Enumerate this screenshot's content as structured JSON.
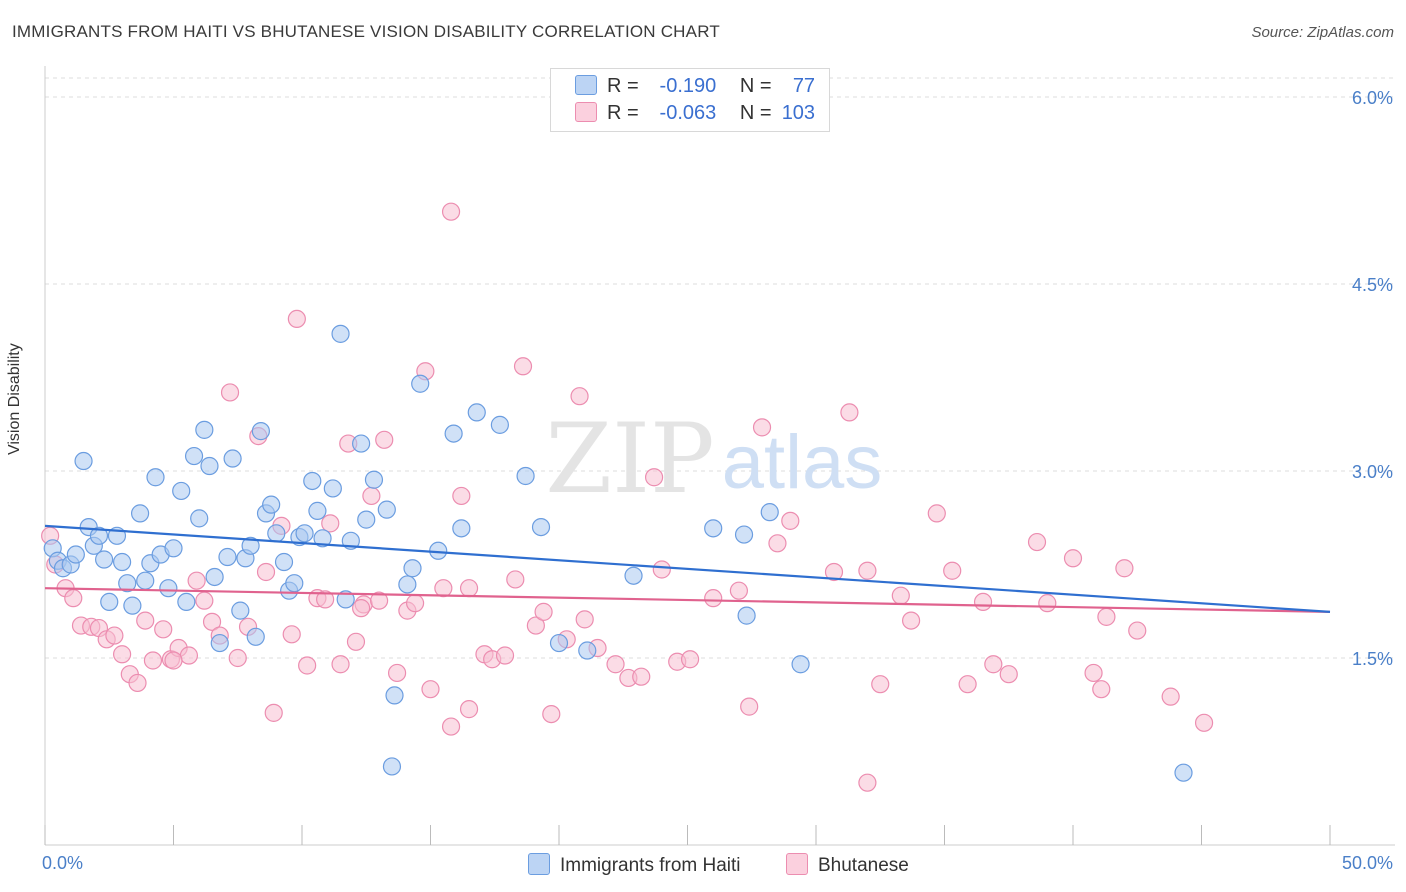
{
  "title": "IMMIGRANTS FROM HAITI VS BHUTANESE VISION DISABILITY CORRELATION CHART",
  "source": "Source: ZipAtlas.com",
  "watermark": {
    "zip": "ZIP",
    "atlas": "atlas"
  },
  "legend": {
    "rows": [
      {
        "r_label": "R =",
        "r_value": "-0.190",
        "n_label": "N =",
        "n_value": "77"
      },
      {
        "r_label": "R =",
        "r_value": "-0.063",
        "n_label": "N =",
        "n_value": "103"
      }
    ]
  },
  "colors": {
    "haiti_fill": "#a9c8f0",
    "haiti_stroke": "#6b9de0",
    "haiti_line": "#2f6fd0",
    "bhutan_fill": "#f8bfd2",
    "bhutan_stroke": "#ec8db0",
    "bhutan_line": "#e0628e",
    "tick": "#4a7fc8",
    "grid": "#dddddd"
  },
  "chart_data": {
    "type": "scatter",
    "title": "IMMIGRANTS FROM HAITI VS BHUTANESE VISION DISABILITY CORRELATION CHART",
    "xlabel": "",
    "ylabel": "Vision Disability",
    "xlim": [
      0,
      50
    ],
    "ylim": [
      0,
      6.2
    ],
    "x_tick_labels": [
      "0.0%",
      "50.0%"
    ],
    "y_ticks": [
      1.5,
      3.0,
      4.5,
      6.0
    ],
    "y_tick_labels": [
      "1.5%",
      "3.0%",
      "4.5%",
      "6.0%"
    ],
    "grid": "horizontal dashed",
    "legend_position": "top-center and bottom",
    "series": [
      {
        "name": "Immigrants from Haiti",
        "r": -0.19,
        "n": 77,
        "trend": {
          "x": [
            0,
            50
          ],
          "y": [
            2.56,
            1.87
          ]
        },
        "points": [
          [
            0.3,
            2.38
          ],
          [
            0.5,
            2.28
          ],
          [
            0.7,
            2.22
          ],
          [
            1.0,
            2.25
          ],
          [
            1.2,
            2.33
          ],
          [
            1.5,
            3.08
          ],
          [
            1.7,
            2.55
          ],
          [
            1.9,
            2.4
          ],
          [
            2.1,
            2.48
          ],
          [
            2.3,
            2.29
          ],
          [
            2.5,
            1.95
          ],
          [
            2.8,
            2.48
          ],
          [
            3.0,
            2.27
          ],
          [
            3.2,
            2.1
          ],
          [
            3.4,
            1.92
          ],
          [
            3.7,
            2.66
          ],
          [
            3.9,
            2.12
          ],
          [
            4.1,
            2.26
          ],
          [
            4.3,
            2.95
          ],
          [
            4.5,
            2.33
          ],
          [
            4.8,
            2.06
          ],
          [
            5.0,
            2.38
          ],
          [
            5.3,
            2.84
          ],
          [
            5.5,
            1.95
          ],
          [
            5.8,
            3.12
          ],
          [
            6.0,
            2.62
          ],
          [
            6.2,
            3.33
          ],
          [
            6.4,
            3.04
          ],
          [
            6.6,
            2.15
          ],
          [
            6.8,
            1.62
          ],
          [
            7.1,
            2.31
          ],
          [
            7.3,
            3.1
          ],
          [
            7.6,
            1.88
          ],
          [
            7.8,
            2.3
          ],
          [
            8.0,
            2.4
          ],
          [
            8.2,
            1.67
          ],
          [
            8.4,
            3.32
          ],
          [
            8.6,
            2.66
          ],
          [
            8.8,
            2.73
          ],
          [
            9.0,
            2.5
          ],
          [
            9.3,
            2.27
          ],
          [
            9.5,
            2.04
          ],
          [
            9.7,
            2.1
          ],
          [
            9.9,
            2.47
          ],
          [
            10.1,
            2.5
          ],
          [
            10.4,
            2.92
          ],
          [
            10.6,
            2.68
          ],
          [
            10.8,
            2.46
          ],
          [
            11.2,
            2.86
          ],
          [
            11.5,
            4.1
          ],
          [
            11.7,
            1.97
          ],
          [
            11.9,
            2.44
          ],
          [
            12.3,
            3.22
          ],
          [
            12.5,
            2.61
          ],
          [
            12.8,
            2.93
          ],
          [
            13.3,
            2.69
          ],
          [
            13.6,
            1.2
          ],
          [
            14.1,
            2.09
          ],
          [
            14.3,
            2.22
          ],
          [
            14.6,
            3.7
          ],
          [
            15.9,
            3.3
          ],
          [
            16.2,
            2.54
          ],
          [
            16.8,
            3.47
          ],
          [
            17.7,
            3.37
          ],
          [
            18.7,
            2.96
          ],
          [
            19.3,
            2.55
          ],
          [
            20.0,
            1.62
          ],
          [
            21.1,
            1.56
          ],
          [
            22.9,
            2.16
          ],
          [
            26.0,
            2.54
          ],
          [
            27.2,
            2.49
          ],
          [
            27.3,
            1.84
          ],
          [
            28.2,
            2.67
          ],
          [
            29.4,
            1.45
          ],
          [
            44.3,
            0.58
          ],
          [
            13.5,
            0.63
          ],
          [
            15.3,
            2.36
          ]
        ]
      },
      {
        "name": "Bhutanese",
        "r": -0.063,
        "n": 103,
        "trend": {
          "x": [
            0,
            50
          ],
          "y": [
            2.06,
            1.87
          ]
        },
        "points": [
          [
            0.2,
            2.48
          ],
          [
            0.4,
            2.25
          ],
          [
            0.8,
            2.06
          ],
          [
            1.1,
            1.98
          ],
          [
            1.4,
            1.76
          ],
          [
            1.8,
            1.75
          ],
          [
            2.1,
            1.74
          ],
          [
            2.4,
            1.65
          ],
          [
            2.7,
            1.68
          ],
          [
            3.0,
            1.53
          ],
          [
            3.3,
            1.37
          ],
          [
            3.6,
            1.3
          ],
          [
            3.9,
            1.8
          ],
          [
            4.2,
            1.48
          ],
          [
            4.6,
            1.73
          ],
          [
            4.9,
            1.49
          ],
          [
            5.2,
            1.58
          ],
          [
            5.6,
            1.52
          ],
          [
            5.9,
            2.12
          ],
          [
            6.2,
            1.96
          ],
          [
            6.5,
            1.79
          ],
          [
            6.8,
            1.68
          ],
          [
            7.2,
            3.63
          ],
          [
            7.5,
            1.5
          ],
          [
            7.9,
            1.75
          ],
          [
            8.3,
            3.28
          ],
          [
            8.6,
            2.19
          ],
          [
            8.9,
            1.06
          ],
          [
            9.2,
            2.56
          ],
          [
            9.6,
            1.69
          ],
          [
            9.8,
            4.22
          ],
          [
            10.2,
            1.44
          ],
          [
            10.6,
            1.98
          ],
          [
            10.9,
            1.97
          ],
          [
            11.1,
            2.58
          ],
          [
            11.5,
            1.45
          ],
          [
            11.8,
            3.22
          ],
          [
            12.1,
            1.63
          ],
          [
            12.4,
            1.93
          ],
          [
            12.7,
            2.8
          ],
          [
            13.0,
            1.96
          ],
          [
            13.2,
            3.25
          ],
          [
            13.7,
            1.38
          ],
          [
            14.1,
            1.88
          ],
          [
            14.4,
            1.94
          ],
          [
            14.8,
            3.8
          ],
          [
            15.0,
            1.25
          ],
          [
            15.5,
            2.06
          ],
          [
            15.8,
            0.95
          ],
          [
            16.2,
            2.8
          ],
          [
            16.5,
            1.09
          ],
          [
            17.1,
            1.53
          ],
          [
            17.4,
            1.49
          ],
          [
            17.9,
            1.52
          ],
          [
            18.3,
            2.13
          ],
          [
            18.6,
            3.84
          ],
          [
            19.1,
            1.76
          ],
          [
            19.4,
            1.87
          ],
          [
            19.7,
            1.05
          ],
          [
            20.3,
            1.65
          ],
          [
            20.8,
            3.6
          ],
          [
            21.0,
            1.81
          ],
          [
            21.5,
            1.58
          ],
          [
            22.2,
            1.45
          ],
          [
            22.7,
            1.34
          ],
          [
            23.2,
            1.35
          ],
          [
            23.7,
            2.95
          ],
          [
            24.0,
            2.21
          ],
          [
            24.6,
            1.47
          ],
          [
            25.1,
            1.49
          ],
          [
            26.0,
            1.98
          ],
          [
            27.0,
            2.04
          ],
          [
            27.4,
            1.11
          ],
          [
            27.9,
            3.35
          ],
          [
            28.5,
            2.42
          ],
          [
            29.0,
            2.6
          ],
          [
            30.7,
            2.19
          ],
          [
            31.3,
            3.47
          ],
          [
            32.0,
            2.2
          ],
          [
            32.5,
            1.29
          ],
          [
            33.3,
            2.0
          ],
          [
            33.7,
            1.8
          ],
          [
            34.7,
            2.66
          ],
          [
            35.3,
            2.2
          ],
          [
            35.9,
            1.29
          ],
          [
            36.5,
            1.95
          ],
          [
            36.9,
            1.45
          ],
          [
            37.5,
            1.37
          ],
          [
            38.6,
            2.43
          ],
          [
            39.0,
            1.94
          ],
          [
            40.0,
            2.3
          ],
          [
            40.8,
            1.38
          ],
          [
            41.1,
            1.25
          ],
          [
            41.3,
            1.83
          ],
          [
            42.0,
            2.22
          ],
          [
            42.5,
            1.72
          ],
          [
            43.8,
            1.19
          ],
          [
            45.1,
            0.98
          ],
          [
            32.0,
            0.5
          ],
          [
            15.8,
            5.08
          ],
          [
            16.5,
            2.06
          ],
          [
            5.0,
            1.48
          ],
          [
            12.3,
            1.9
          ]
        ]
      }
    ]
  },
  "bottom_legend": {
    "haiti": "Immigrants from Haiti",
    "bhutan": "Bhutanese"
  }
}
